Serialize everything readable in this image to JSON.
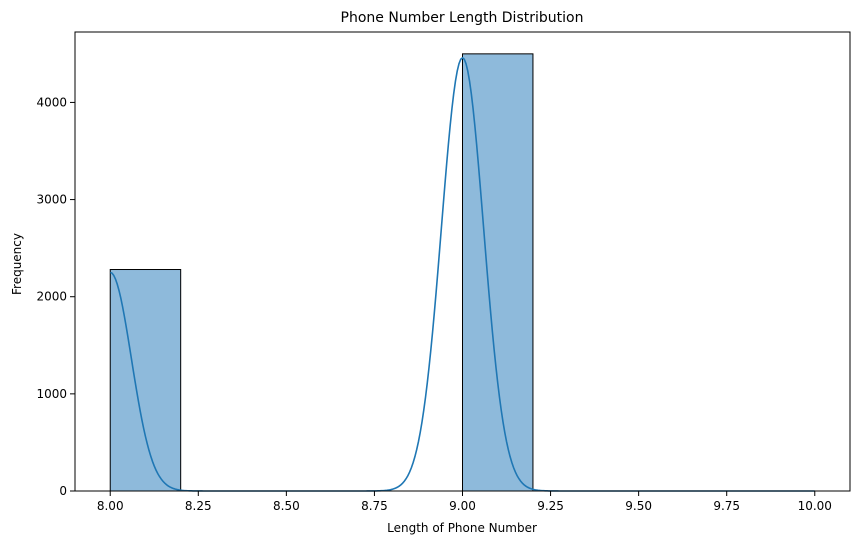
{
  "chart_data": {
    "type": "bar",
    "title": "Phone Number Length Distribution",
    "xlabel": "Length of Phone Number",
    "ylabel": "Frequency",
    "xlim": [
      7.9,
      10.1
    ],
    "ylim": [
      0,
      4725
    ],
    "x_ticks": [
      "8.00",
      "8.25",
      "8.50",
      "8.75",
      "9.00",
      "9.25",
      "9.50",
      "9.75",
      "10.00"
    ],
    "y_ticks": [
      "0",
      "1000",
      "2000",
      "3000",
      "4000"
    ],
    "bins": [
      {
        "x0": 8.0,
        "x1": 8.2,
        "value": 2280
      },
      {
        "x0": 8.2,
        "x1": 8.4,
        "value": 0
      },
      {
        "x0": 8.4,
        "x1": 8.6,
        "value": 0
      },
      {
        "x0": 8.6,
        "x1": 8.8,
        "value": 0
      },
      {
        "x0": 8.8,
        "x1": 9.0,
        "value": 0
      },
      {
        "x0": 9.0,
        "x1": 9.2,
        "value": 4500
      },
      {
        "x0": 9.2,
        "x1": 9.4,
        "value": 0
      },
      {
        "x0": 9.4,
        "x1": 9.6,
        "value": 0
      },
      {
        "x0": 9.6,
        "x1": 9.8,
        "value": 0
      },
      {
        "x0": 9.8,
        "x1": 10.0,
        "value": 0
      }
    ],
    "kde": {
      "peaks": [
        {
          "x": 8.0,
          "height": 2250
        },
        {
          "x": 9.0,
          "height": 4460
        }
      ],
      "range": [
        8.0,
        10.0
      ]
    },
    "bar_color": "#8ebadb",
    "line_color": "#1f77b4",
    "grid": false
  }
}
